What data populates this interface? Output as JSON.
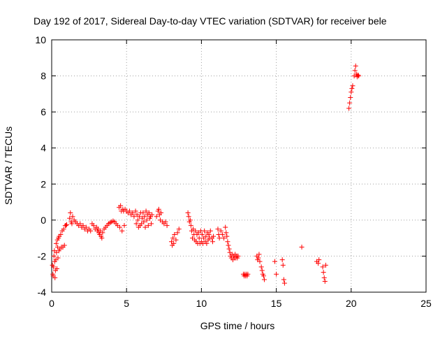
{
  "chart_data": {
    "type": "scatter",
    "title": "Day 192 of 2017, Sidereal Day-to-day VTEC variation (SDTVAR) for receiver bele",
    "xlabel": "GPS time / hours",
    "ylabel": "SDTVAR / TECUs",
    "xlim": [
      0,
      25
    ],
    "ylim": [
      -4,
      10
    ],
    "xticks": [
      "0",
      "5",
      "10",
      "15",
      "20",
      "25"
    ],
    "yticks": [
      "-4",
      "-2",
      "0",
      "2",
      "4",
      "6",
      "8",
      "10"
    ],
    "grid": true,
    "marker": "+",
    "series": [
      {
        "name": "SDTVAR",
        "color": "#ff0000",
        "points": [
          [
            0.05,
            -2.5
          ],
          [
            0.08,
            -3.0
          ],
          [
            0.1,
            -3.1
          ],
          [
            0.12,
            -2.6
          ],
          [
            0.15,
            -2.0
          ],
          [
            0.18,
            -1.7
          ],
          [
            0.2,
            -2.3
          ],
          [
            0.22,
            -3.2
          ],
          [
            0.25,
            -2.8
          ],
          [
            0.28,
            -2.2
          ],
          [
            0.3,
            -1.3
          ],
          [
            0.32,
            -1.8
          ],
          [
            0.35,
            -2.7
          ],
          [
            0.38,
            -1.1
          ],
          [
            0.4,
            -1.5
          ],
          [
            0.42,
            -2.1
          ],
          [
            0.45,
            -1.0
          ],
          [
            0.48,
            -1.7
          ],
          [
            0.5,
            -0.9
          ],
          [
            0.55,
            -1.6
          ],
          [
            0.6,
            -0.8
          ],
          [
            0.65,
            -1.5
          ],
          [
            0.7,
            -0.6
          ],
          [
            0.75,
            -1.5
          ],
          [
            0.8,
            -0.5
          ],
          [
            0.85,
            -1.4
          ],
          [
            0.9,
            -0.3
          ],
          [
            0.95,
            -0.3
          ],
          [
            1.0,
            -0.25
          ],
          [
            1.2,
            0.1
          ],
          [
            1.25,
            0.4
          ],
          [
            1.3,
            -0.1
          ],
          [
            1.35,
            -0.2
          ],
          [
            1.4,
            0.2
          ],
          [
            1.5,
            0.0
          ],
          [
            1.6,
            -0.1
          ],
          [
            1.7,
            -0.2
          ],
          [
            1.8,
            -0.3
          ],
          [
            1.9,
            -0.2
          ],
          [
            2.0,
            -0.4
          ],
          [
            2.1,
            -0.3
          ],
          [
            2.2,
            -0.5
          ],
          [
            2.3,
            -0.4
          ],
          [
            2.4,
            -0.6
          ],
          [
            2.5,
            -0.5
          ],
          [
            2.6,
            -0.6
          ],
          [
            2.7,
            -0.2
          ],
          [
            2.8,
            -0.3
          ],
          [
            2.9,
            -0.5
          ],
          [
            3.0,
            -0.4
          ],
          [
            3.05,
            -0.6
          ],
          [
            3.1,
            -0.5
          ],
          [
            3.15,
            -0.7
          ],
          [
            3.2,
            -0.8
          ],
          [
            3.25,
            -0.6
          ],
          [
            3.3,
            -0.9
          ],
          [
            3.35,
            -1.0
          ],
          [
            3.4,
            -0.7
          ],
          [
            3.5,
            -0.5
          ],
          [
            3.6,
            -0.4
          ],
          [
            3.7,
            -0.3
          ],
          [
            3.8,
            -0.2
          ],
          [
            3.9,
            -0.15
          ],
          [
            4.0,
            -0.1
          ],
          [
            4.1,
            -0.05
          ],
          [
            4.2,
            -0.1
          ],
          [
            4.3,
            -0.2
          ],
          [
            4.4,
            -0.3
          ],
          [
            4.5,
            0.7
          ],
          [
            4.55,
            -0.4
          ],
          [
            4.6,
            0.8
          ],
          [
            4.65,
            0.5
          ],
          [
            4.7,
            -0.6
          ],
          [
            4.75,
            0.6
          ],
          [
            4.8,
            0.5
          ],
          [
            4.85,
            -0.3
          ],
          [
            4.9,
            0.6
          ],
          [
            5.0,
            0.5
          ],
          [
            5.1,
            0.4
          ],
          [
            5.2,
            0.5
          ],
          [
            5.3,
            0.3
          ],
          [
            5.4,
            0.4
          ],
          [
            5.5,
            0.2
          ],
          [
            5.6,
            0.5
          ],
          [
            5.65,
            -0.2
          ],
          [
            5.7,
            0.3
          ],
          [
            5.75,
            0.0
          ],
          [
            5.8,
            -0.4
          ],
          [
            5.85,
            0.2
          ],
          [
            5.9,
            -0.3
          ],
          [
            5.95,
            0.4
          ],
          [
            6.0,
            -0.2
          ],
          [
            6.05,
            0.1
          ],
          [
            6.1,
            0.4
          ],
          [
            6.15,
            -0.1
          ],
          [
            6.2,
            0.2
          ],
          [
            6.25,
            -0.4
          ],
          [
            6.3,
            0.5
          ],
          [
            6.35,
            0.0
          ],
          [
            6.4,
            0.3
          ],
          [
            6.45,
            -0.3
          ],
          [
            6.5,
            0.4
          ],
          [
            6.55,
            0.1
          ],
          [
            6.6,
            0.2
          ],
          [
            6.65,
            -0.2
          ],
          [
            6.7,
            0.3
          ],
          [
            7.0,
            0.2
          ],
          [
            7.1,
            0.5
          ],
          [
            7.15,
            0.6
          ],
          [
            7.2,
            0.3
          ],
          [
            7.25,
            0.0
          ],
          [
            7.3,
            0.4
          ],
          [
            7.4,
            -0.1
          ],
          [
            7.5,
            -0.2
          ],
          [
            7.6,
            -0.1
          ],
          [
            7.7,
            -0.3
          ],
          [
            8.0,
            -1.2
          ],
          [
            8.05,
            -1.4
          ],
          [
            8.1,
            -1.0
          ],
          [
            8.15,
            -1.3
          ],
          [
            8.2,
            -0.8
          ],
          [
            8.3,
            -1.1
          ],
          [
            8.4,
            -0.7
          ],
          [
            8.5,
            -0.5
          ],
          [
            9.1,
            0.4
          ],
          [
            9.15,
            0.2
          ],
          [
            9.2,
            -0.1
          ],
          [
            9.25,
            0.0
          ],
          [
            9.3,
            -0.3
          ],
          [
            9.35,
            -0.6
          ],
          [
            9.4,
            -1.0
          ],
          [
            9.45,
            -0.5
          ],
          [
            9.5,
            -0.8
          ],
          [
            9.55,
            -1.1
          ],
          [
            9.6,
            -0.6
          ],
          [
            9.65,
            -1.2
          ],
          [
            9.7,
            -0.8
          ],
          [
            9.75,
            -1.3
          ],
          [
            9.8,
            -0.7
          ],
          [
            9.85,
            -1.0
          ],
          [
            9.9,
            -1.3
          ],
          [
            9.95,
            -0.6
          ],
          [
            10.0,
            -1.2
          ],
          [
            10.05,
            -0.8
          ],
          [
            10.1,
            -1.3
          ],
          [
            10.15,
            -1.0
          ],
          [
            10.2,
            -0.6
          ],
          [
            10.25,
            -1.2
          ],
          [
            10.3,
            -0.9
          ],
          [
            10.35,
            -1.3
          ],
          [
            10.4,
            -0.7
          ],
          [
            10.45,
            -1.1
          ],
          [
            10.5,
            -0.8
          ],
          [
            10.55,
            -1.0
          ],
          [
            10.6,
            -0.6
          ],
          [
            10.7,
            -1.0
          ],
          [
            10.75,
            -1.2
          ],
          [
            10.8,
            -0.9
          ],
          [
            11.1,
            -0.5
          ],
          [
            11.15,
            -0.8
          ],
          [
            11.2,
            -1.0
          ],
          [
            11.3,
            -0.6
          ],
          [
            11.4,
            -0.8
          ],
          [
            11.5,
            -1.0
          ],
          [
            11.6,
            -0.4
          ],
          [
            11.65,
            -0.7
          ],
          [
            11.7,
            -0.9
          ],
          [
            11.75,
            -1.2
          ],
          [
            11.8,
            -1.4
          ],
          [
            11.85,
            -1.6
          ],
          [
            11.9,
            -1.8
          ],
          [
            11.95,
            -2.0
          ],
          [
            12.0,
            -2.1
          ],
          [
            12.05,
            -1.9
          ],
          [
            12.1,
            -2.2
          ],
          [
            12.15,
            -2.0
          ],
          [
            12.2,
            -2.1
          ],
          [
            12.25,
            -1.9
          ],
          [
            12.3,
            -2.1
          ],
          [
            12.35,
            -2.0
          ],
          [
            12.4,
            -2.1
          ],
          [
            12.45,
            -2.0
          ],
          [
            12.8,
            -3.0
          ],
          [
            12.85,
            -3.1
          ],
          [
            12.9,
            -3.0
          ],
          [
            12.95,
            -3.1
          ],
          [
            13.0,
            -3.0
          ],
          [
            13.05,
            -3.1
          ],
          [
            13.1,
            -3.0
          ],
          [
            13.7,
            -2.0
          ],
          [
            13.75,
            -2.2
          ],
          [
            13.8,
            -2.1
          ],
          [
            13.85,
            -1.9
          ],
          [
            13.9,
            -2.3
          ],
          [
            14.0,
            -2.6
          ],
          [
            14.05,
            -2.8
          ],
          [
            14.1,
            -3.0
          ],
          [
            14.15,
            -3.1
          ],
          [
            14.2,
            -3.3
          ],
          [
            14.9,
            -2.3
          ],
          [
            15.0,
            -3.0
          ],
          [
            15.4,
            -2.2
          ],
          [
            15.45,
            -2.5
          ],
          [
            15.5,
            -3.3
          ],
          [
            15.55,
            -3.5
          ],
          [
            16.7,
            -1.5
          ],
          [
            17.7,
            -2.3
          ],
          [
            17.8,
            -2.4
          ],
          [
            17.85,
            -2.2
          ],
          [
            18.1,
            -2.6
          ],
          [
            18.15,
            -2.9
          ],
          [
            18.2,
            -3.2
          ],
          [
            18.25,
            -3.4
          ],
          [
            18.3,
            -2.5
          ],
          [
            19.85,
            6.2
          ],
          [
            19.9,
            6.5
          ],
          [
            19.95,
            6.8
          ],
          [
            20.0,
            7.1
          ],
          [
            20.05,
            7.3
          ],
          [
            20.1,
            7.45
          ],
          [
            20.2,
            8.0
          ],
          [
            20.25,
            8.3
          ],
          [
            20.3,
            8.55
          ],
          [
            20.35,
            8.1
          ],
          [
            20.4,
            7.95
          ],
          [
            20.45,
            8.05
          ],
          [
            20.5,
            8.0
          ]
        ]
      }
    ]
  }
}
